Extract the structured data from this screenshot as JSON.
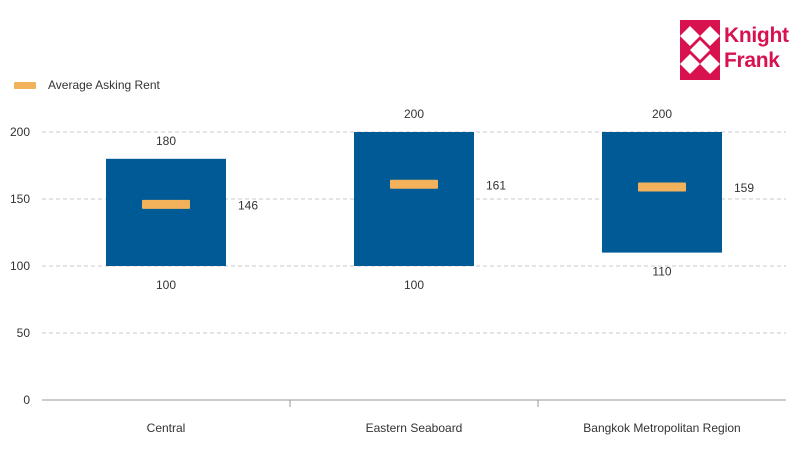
{
  "brand": {
    "line1": "Knight",
    "line2": "Frank",
    "color": "#d8114f"
  },
  "legend": {
    "label": "Average Asking Rent"
  },
  "colors": {
    "range_bar": "#005a96",
    "average_marker": "#f2b25c",
    "grid": "#c8c8c8",
    "axis": "#999999",
    "text": "#333333"
  },
  "chart_data": {
    "type": "bar",
    "subtype": "floating range with average marker",
    "categories": [
      "Central",
      "Eastern Seaboard",
      "Bangkok Metropolitan Region"
    ],
    "series": [
      {
        "name": "Average Asking Rent",
        "values": [
          146,
          161,
          159
        ]
      }
    ],
    "ranges": [
      {
        "low": 100,
        "high": 180
      },
      {
        "low": 100,
        "high": 200
      },
      {
        "low": 110,
        "high": 200
      }
    ],
    "yticks": [
      0,
      50,
      100,
      150,
      200
    ],
    "ylim": [
      0,
      200
    ],
    "grid": true,
    "grid_style": "dashed horizontal",
    "legend_position": "top-left",
    "title": "",
    "xlabel": "",
    "ylabel": ""
  }
}
